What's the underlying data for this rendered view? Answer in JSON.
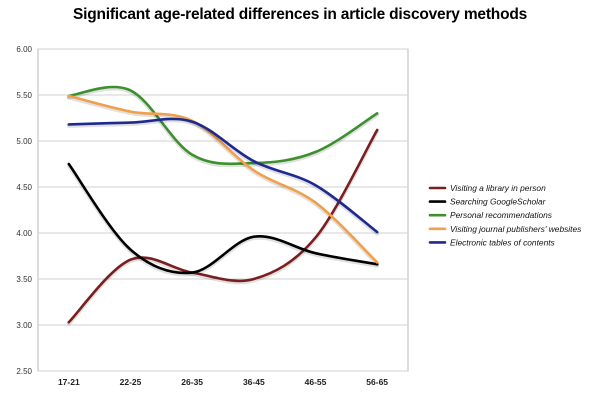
{
  "chart_data": {
    "type": "line",
    "title": "Significant age-related differences in article discovery methods",
    "xlabel": "",
    "ylabel": "",
    "categories": [
      "17-21",
      "22-25",
      "26-35",
      "36-45",
      "46-55",
      "56-65"
    ],
    "ylim": [
      2.5,
      6.0
    ],
    "yticks": [
      "2.50",
      "3.00",
      "3.50",
      "4.00",
      "4.50",
      "5.00",
      "5.50",
      "6.00"
    ],
    "grid": "horizontal",
    "legend": "right",
    "smooth": true,
    "series": [
      {
        "name": "Visiting a library in person",
        "color": "#7a1f1f",
        "values": [
          3.03,
          3.71,
          3.57,
          3.5,
          3.95,
          5.12
        ]
      },
      {
        "name": "Searching GoogleScholar",
        "color": "#000000",
        "values": [
          4.75,
          3.82,
          3.57,
          3.96,
          3.78,
          3.66
        ]
      },
      {
        "name": "Personal recommendations",
        "color": "#3d8f2f",
        "values": [
          5.49,
          5.55,
          4.85,
          4.76,
          4.88,
          5.3
        ]
      },
      {
        "name": "Visiting journal publishers' websites",
        "color": "#f0a04b",
        "values": [
          5.49,
          5.32,
          5.22,
          4.68,
          4.33,
          3.68
        ]
      },
      {
        "name": "Electronic tables of contents",
        "color": "#1f2a8f",
        "values": [
          5.18,
          5.2,
          5.21,
          4.78,
          4.52,
          4.01
        ]
      }
    ]
  }
}
